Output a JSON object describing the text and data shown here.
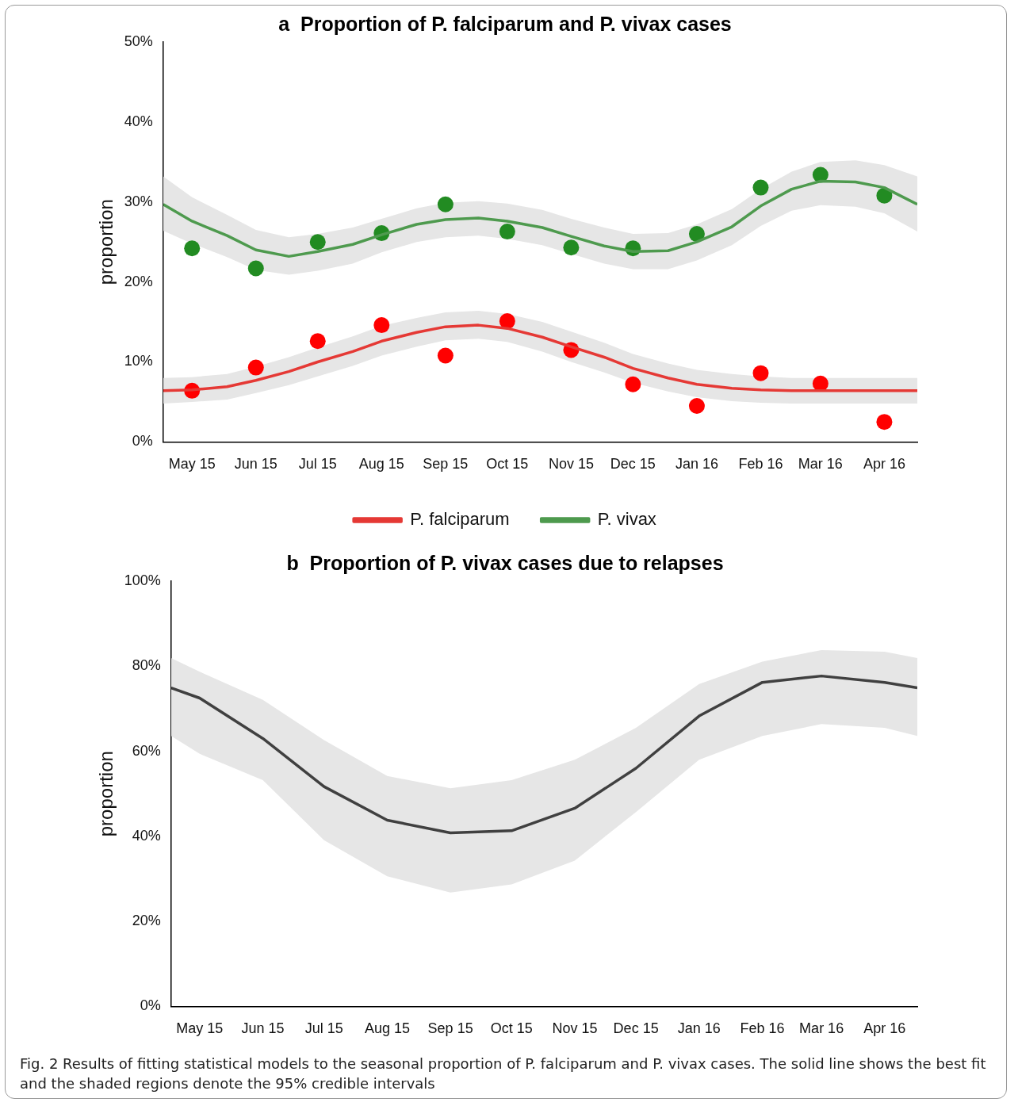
{
  "chart_data": [
    {
      "type": "line",
      "title": "a  Proportion of P. falciparum and P. vivax cases",
      "ylabel": "proportion",
      "xlim": [
        "2015-05-01",
        "2016-05-01"
      ],
      "xticks": [
        {
          "value": "2015-05-15",
          "label": "May 15"
        },
        {
          "value": "2015-06-15",
          "label": "Jun 15"
        },
        {
          "value": "2015-07-15",
          "label": "Jul 15"
        },
        {
          "value": "2015-08-15",
          "label": "Aug 15"
        },
        {
          "value": "2015-09-15",
          "label": "Sep 15"
        },
        {
          "value": "2015-10-15",
          "label": "Oct 15"
        },
        {
          "value": "2015-11-15",
          "label": "Nov 15"
        },
        {
          "value": "2015-12-15",
          "label": "Dec 15"
        },
        {
          "value": "2016-01-15",
          "label": "Jan 16"
        },
        {
          "value": "2016-02-15",
          "label": "Feb 16"
        },
        {
          "value": "2016-03-15",
          "label": "Mar 16"
        },
        {
          "value": "2016-04-15",
          "label": "Apr 16"
        }
      ],
      "ylim": [
        0,
        50
      ],
      "yticks": [
        {
          "value": 0,
          "label": "0%"
        },
        {
          "value": 10,
          "label": "10%"
        },
        {
          "value": 20,
          "label": "20%"
        },
        {
          "value": 30,
          "label": "30%"
        },
        {
          "value": 40,
          "label": "40%"
        },
        {
          "value": 50,
          "label": "50%"
        }
      ],
      "legend": "bottom",
      "series": [
        {
          "name": "P. falciparum",
          "color": "#e53935",
          "marker": "none",
          "x": [
            "2015-05-01",
            "2015-05-15",
            "2015-06-01",
            "2015-06-15",
            "2015-07-01",
            "2015-07-15",
            "2015-08-01",
            "2015-08-15",
            "2015-09-01",
            "2015-09-15",
            "2015-10-01",
            "2015-10-15",
            "2015-11-01",
            "2015-11-15",
            "2015-12-01",
            "2015-12-15",
            "2016-01-01",
            "2016-01-15",
            "2016-02-01",
            "2016-02-15",
            "2016-03-01",
            "2016-03-15",
            "2016-04-01",
            "2016-04-15",
            "2016-05-01"
          ],
          "values": [
            6.4,
            6.5,
            6.9,
            7.7,
            8.8,
            10.0,
            11.3,
            12.6,
            13.7,
            14.4,
            14.6,
            14.2,
            13.1,
            11.9,
            10.6,
            9.2,
            8.0,
            7.2,
            6.7,
            6.5,
            6.4,
            6.4,
            6.4,
            6.4,
            6.4
          ],
          "upper": [
            8.0,
            8.1,
            8.5,
            9.4,
            10.6,
            11.8,
            13.2,
            14.5,
            15.5,
            16.2,
            16.4,
            16.0,
            15.0,
            13.8,
            12.4,
            11.0,
            9.8,
            9.0,
            8.5,
            8.2,
            8.0,
            8.0,
            8.0,
            8.0,
            8.0
          ],
          "lower": [
            4.8,
            5.0,
            5.3,
            6.1,
            7.1,
            8.2,
            9.5,
            10.8,
            11.9,
            12.7,
            12.9,
            12.5,
            11.3,
            10.0,
            8.7,
            7.4,
            6.3,
            5.6,
            5.1,
            4.9,
            4.8,
            4.8,
            4.8,
            4.8,
            4.8
          ]
        },
        {
          "name": "P. vivax",
          "color": "#4e9a4e",
          "marker": "none",
          "x": [
            "2015-05-01",
            "2015-05-15",
            "2015-06-01",
            "2015-06-15",
            "2015-07-01",
            "2015-07-15",
            "2015-08-01",
            "2015-08-15",
            "2015-09-01",
            "2015-09-15",
            "2015-10-01",
            "2015-10-15",
            "2015-11-01",
            "2015-11-15",
            "2015-12-01",
            "2015-12-15",
            "2016-01-01",
            "2016-01-15",
            "2016-02-01",
            "2016-02-15",
            "2016-03-01",
            "2016-03-15",
            "2016-04-01",
            "2016-04-15",
            "2016-05-01"
          ],
          "values": [
            29.7,
            27.6,
            25.8,
            24.0,
            23.2,
            23.8,
            24.7,
            25.9,
            27.2,
            27.8,
            28.0,
            27.6,
            26.8,
            25.7,
            24.5,
            23.8,
            23.9,
            25.0,
            26.9,
            29.5,
            31.6,
            32.6,
            32.5,
            31.8,
            29.7
          ],
          "upper": [
            33.2,
            30.6,
            28.4,
            26.5,
            25.6,
            26.0,
            26.8,
            27.9,
            29.2,
            29.9,
            30.1,
            29.8,
            29.0,
            27.9,
            26.8,
            26.0,
            26.1,
            27.2,
            29.1,
            31.6,
            33.8,
            35.0,
            35.2,
            34.6,
            33.2
          ],
          "lower": [
            26.4,
            24.8,
            23.1,
            21.5,
            20.9,
            21.4,
            22.3,
            23.7,
            25.0,
            25.6,
            25.8,
            25.4,
            24.6,
            23.5,
            22.3,
            21.6,
            21.6,
            22.7,
            24.6,
            27.0,
            28.9,
            29.6,
            29.4,
            28.6,
            26.3
          ]
        },
        {
          "type": "scatter",
          "color": "#ff0000",
          "marker": "circle",
          "x": [
            "2015-05-15",
            "2015-06-15",
            "2015-07-15",
            "2015-08-15",
            "2015-09-15",
            "2015-10-15",
            "2015-11-15",
            "2015-12-15",
            "2016-01-15",
            "2016-02-15",
            "2016-03-15",
            "2016-04-15"
          ],
          "values": [
            6.4,
            9.3,
            12.6,
            14.6,
            10.8,
            15.1,
            11.5,
            7.2,
            4.5,
            8.6,
            7.3,
            2.5
          ]
        },
        {
          "type": "scatter",
          "color": "#228b22",
          "marker": "circle",
          "x": [
            "2015-05-15",
            "2015-06-15",
            "2015-07-15",
            "2015-08-15",
            "2015-09-15",
            "2015-10-15",
            "2015-11-15",
            "2015-12-15",
            "2016-01-15",
            "2016-02-15",
            "2016-03-15",
            "2016-04-15"
          ],
          "values": [
            24.2,
            21.7,
            25.0,
            26.1,
            29.7,
            26.3,
            24.3,
            24.2,
            26.0,
            31.8,
            33.4,
            30.8
          ]
        }
      ]
    },
    {
      "type": "line",
      "title": "b  Proportion of P. vivax cases due to relapses",
      "ylabel": "proportion",
      "xlim": [
        "2015-05-01",
        "2016-05-01"
      ],
      "xticks": [
        {
          "value": "2015-05-15",
          "label": "May 15"
        },
        {
          "value": "2015-06-15",
          "label": "Jun 15"
        },
        {
          "value": "2015-07-15",
          "label": "Jul 15"
        },
        {
          "value": "2015-08-15",
          "label": "Aug 15"
        },
        {
          "value": "2015-09-15",
          "label": "Sep 15"
        },
        {
          "value": "2015-10-15",
          "label": "Oct 15"
        },
        {
          "value": "2015-11-15",
          "label": "Nov 15"
        },
        {
          "value": "2015-12-15",
          "label": "Dec 15"
        },
        {
          "value": "2016-01-15",
          "label": "Jan 16"
        },
        {
          "value": "2016-02-15",
          "label": "Feb 16"
        },
        {
          "value": "2016-03-15",
          "label": "Mar 16"
        },
        {
          "value": "2016-04-15",
          "label": "Apr 16"
        }
      ],
      "ylim": [
        0,
        100
      ],
      "yticks": [
        {
          "value": 0,
          "label": "0%"
        },
        {
          "value": 20,
          "label": "20%"
        },
        {
          "value": 40,
          "label": "40%"
        },
        {
          "value": 60,
          "label": "60%"
        },
        {
          "value": 80,
          "label": "80%"
        },
        {
          "value": 100,
          "label": "100%"
        }
      ],
      "series": [
        {
          "color": "#404040",
          "marker": "none",
          "x": [
            "2015-05-01",
            "2015-05-15",
            "2015-06-15",
            "2015-07-15",
            "2015-08-15",
            "2015-09-15",
            "2015-10-15",
            "2015-11-15",
            "2015-12-15",
            "2016-01-15",
            "2016-02-15",
            "2016-03-15",
            "2016-04-15",
            "2016-05-01"
          ],
          "values": [
            74.9,
            72.5,
            63.0,
            51.7,
            43.8,
            40.8,
            41.3,
            46.6,
            56.0,
            68.3,
            76.2,
            77.7,
            76.2,
            74.9
          ],
          "upper": [
            81.9,
            78.7,
            72.1,
            62.6,
            54.2,
            51.3,
            53.2,
            58.0,
            65.5,
            75.8,
            81.1,
            83.8,
            83.4,
            81.9
          ],
          "lower": [
            63.6,
            59.4,
            53.2,
            39.1,
            30.6,
            26.8,
            28.7,
            34.3,
            45.7,
            58.0,
            63.6,
            66.4,
            65.5,
            63.6
          ]
        }
      ],
      "annotations": [
        "Fig. 2  Results of fitting statistical models to the seasonal proportion of P. falciparum and P. vivax cases. The solid line shows the best fit and the shaded regions denote the 95% credible intervals"
      ]
    }
  ]
}
